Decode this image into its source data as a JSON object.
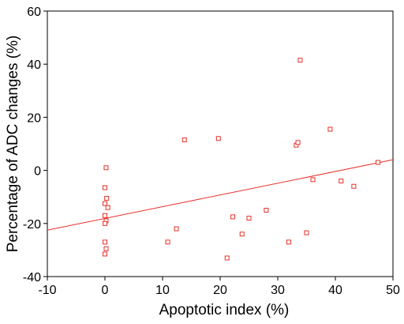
{
  "chart_data": {
    "type": "scatter",
    "title": "",
    "xlabel": "Apoptotic index (%)",
    "ylabel": "Percentage of ADC changes (%)",
    "xlim": [
      -10,
      50
    ],
    "ylim": [
      -40,
      60
    ],
    "xticks": [
      -10,
      0,
      10,
      20,
      30,
      40,
      50
    ],
    "yticks": [
      -40,
      -20,
      0,
      20,
      40,
      60
    ],
    "grid": false,
    "marker_color": "#e8302a",
    "line_color": "#e8302a",
    "series": [
      {
        "marker": "open-square",
        "points": [
          [
            0.2,
            1
          ],
          [
            0,
            -6.5
          ],
          [
            0.3,
            -10.5
          ],
          [
            0,
            -12.5
          ],
          [
            0.5,
            -14
          ],
          [
            0,
            -17
          ],
          [
            0.2,
            -19
          ],
          [
            0,
            -20
          ],
          [
            0,
            -27
          ],
          [
            0.2,
            -29.5
          ],
          [
            0,
            -31.5
          ],
          [
            10.9,
            -27
          ],
          [
            12.4,
            -22
          ],
          [
            13.8,
            11.5
          ],
          [
            19.7,
            12
          ],
          [
            21.2,
            -33
          ],
          [
            22.2,
            -17.5
          ],
          [
            23.8,
            -24
          ],
          [
            25,
            -18
          ],
          [
            28,
            -15
          ],
          [
            31.9,
            -27
          ],
          [
            33.2,
            9.5
          ],
          [
            33.5,
            10.5
          ],
          [
            33.9,
            41.5
          ],
          [
            35,
            -23.5
          ],
          [
            36.1,
            -3.5
          ],
          [
            39.1,
            15.5
          ],
          [
            41,
            -4
          ],
          [
            43.2,
            -6
          ],
          [
            47.4,
            3
          ]
        ]
      }
    ],
    "fit_line": {
      "x": [
        -10,
        50
      ],
      "y": [
        -22.5,
        4
      ]
    }
  }
}
